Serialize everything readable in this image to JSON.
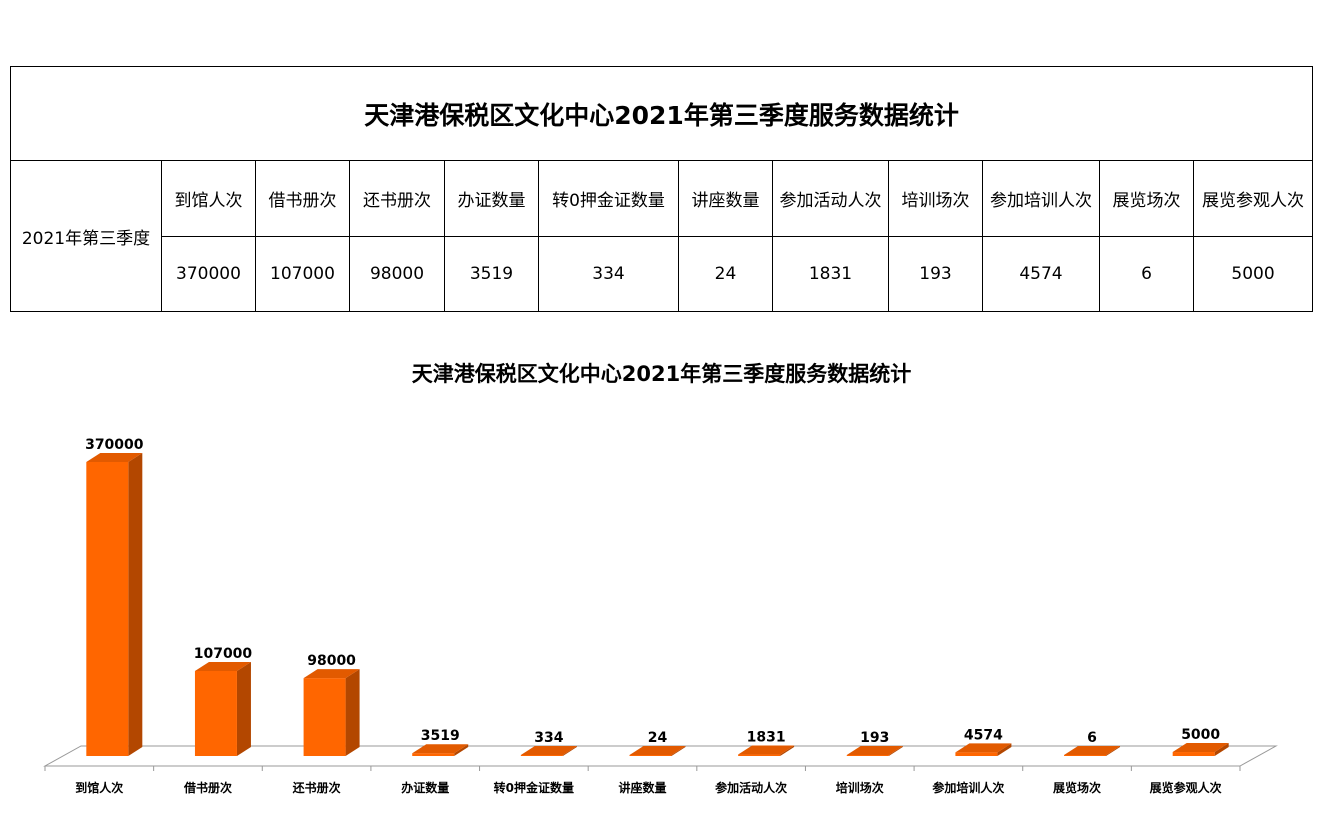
{
  "table": {
    "title": "天津港保税区文化中心2021年第三季度服务数据统计",
    "row_label": "2021年第三季度",
    "headers": [
      "到馆人次",
      "借书册次",
      "还书册次",
      "办证数量",
      "转0押金证数量",
      "讲座数量",
      "参加活动人次",
      "培训场次",
      "参加培训人次",
      "展览场次",
      "展览参观人次"
    ],
    "values": [
      "370000",
      "107000",
      "98000",
      "3519",
      "334",
      "24",
      "1831",
      "193",
      "4574",
      "6",
      "5000"
    ]
  },
  "chart_data": {
    "type": "bar",
    "title": "天津港保税区文化中心2021年第三季度服务数据统计",
    "categories": [
      "到馆人次",
      "借书册次",
      "还书册次",
      "办证数量",
      "转0押金证数量",
      "讲座数量",
      "参加活动人次",
      "培训场次",
      "参加培训人次",
      "展览场次",
      "展览参观人次"
    ],
    "values": [
      370000,
      107000,
      98000,
      3519,
      334,
      24,
      1831,
      193,
      4574,
      6,
      5000
    ],
    "ylim": [
      0,
      370000
    ],
    "grid": false,
    "legend": "none",
    "style": "3d",
    "colors": {
      "bar_front": "#ff6600",
      "bar_side": "#b34700",
      "bar_top": "#e25a00",
      "floor": "#ffffff"
    }
  }
}
